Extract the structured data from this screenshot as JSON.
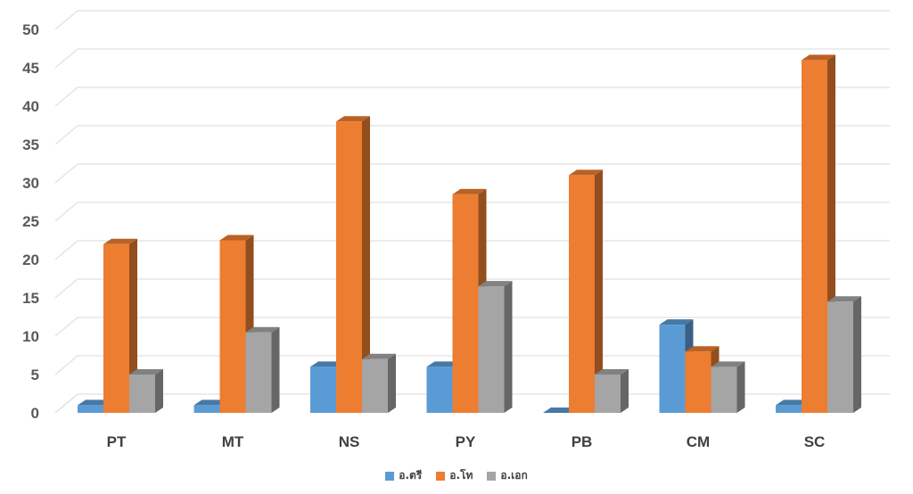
{
  "chart_data": {
    "type": "bar",
    "style": "3d-clustered-column",
    "categories": [
      "PT",
      "MT",
      "NS",
      "PY",
      "PB",
      "CM",
      "SC"
    ],
    "series": [
      {
        "name": "อ.ตรี",
        "color": "#5b9bd5",
        "values": [
          1,
          1,
          6,
          6,
          0,
          11.5,
          1
        ]
      },
      {
        "name": "อ.โท",
        "color": "#ed7d31",
        "values": [
          22,
          22.5,
          38,
          28.5,
          31,
          8,
          46
        ]
      },
      {
        "name": "อ.เอก",
        "color": "#a5a5a5",
        "values": [
          5,
          10.5,
          7,
          16.5,
          5,
          6,
          14.5
        ]
      }
    ],
    "ylim": [
      0,
      50
    ],
    "yticks": [
      "0",
      "5",
      "10",
      "15",
      "20",
      "25",
      "30",
      "35",
      "40",
      "45",
      "50"
    ],
    "grid": true,
    "legend_position": "bottom",
    "title": "",
    "xlabel": "",
    "ylabel": ""
  }
}
